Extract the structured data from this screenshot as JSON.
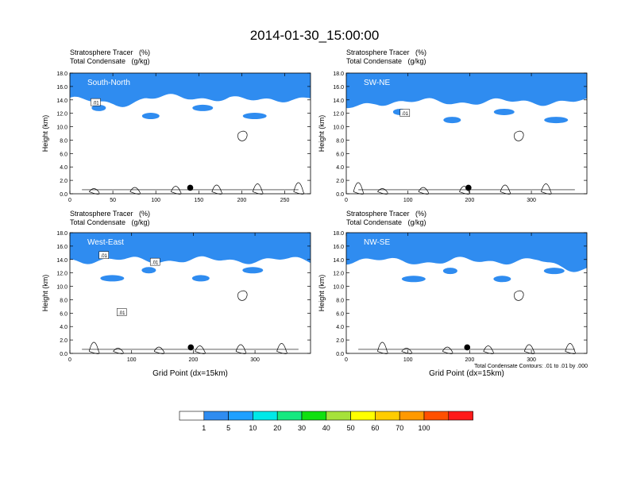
{
  "title": "2014-01-30_15:00:00",
  "colors": {
    "levels": [
      "#ffffff",
      "#2f8cf0",
      "#1fa0ff",
      "#00e8e8",
      "#16e880",
      "#10e010",
      "#a6e23a",
      "#ffff00",
      "#ffcc00",
      "#ff9900",
      "#ff5000",
      "#ff1a1a"
    ],
    "contour": "#000000",
    "marker": "#000000"
  },
  "colorbar": {
    "labels": [
      "1",
      "5",
      "10",
      "20",
      "30",
      "40",
      "50",
      "60",
      "70",
      "100"
    ]
  },
  "footnote": "Total Condensate Contours: .01 to .01 by .000",
  "chart_data": [
    {
      "type": "heatmap",
      "title_line1": "Stratosphere Tracer   (%)",
      "title_line2": "Total Condensate   (g/kg)",
      "label": "South-North",
      "ylabel": "Height (km)",
      "xlabel": "",
      "xlim": [
        0,
        280
      ],
      "ylim": [
        0,
        18
      ],
      "xticks": [
        0,
        50,
        100,
        150,
        200,
        250
      ],
      "yticks": [
        "0.0",
        "2.0",
        "4.0",
        "6.0",
        "8.0",
        "10.0",
        "12.0",
        "14.0",
        "16.0",
        "18.0"
      ],
      "contour_labels": [
        {
          "text": ".01",
          "x": 30,
          "y": 13.6
        }
      ],
      "marker_x": 140,
      "tracer_base_km": 15.2
    },
    {
      "type": "heatmap",
      "title_line1": "Stratosphere Tracer   (%)",
      "title_line2": "Total Condensate   (g/kg)",
      "label": "SW-NE",
      "ylabel": "Height (km)",
      "xlabel": "",
      "xlim": [
        0,
        390
      ],
      "ylim": [
        0,
        18
      ],
      "xticks": [
        0,
        100,
        200,
        300
      ],
      "yticks": [
        "0.0",
        "2.0",
        "4.0",
        "6.0",
        "8.0",
        "10.0",
        "12.0",
        "14.0",
        "16.0",
        "18.0"
      ],
      "contour_labels": [
        {
          "text": ".01",
          "x": 95,
          "y": 12.0
        }
      ],
      "marker_x": 198,
      "tracer_base_km": 14.6
    },
    {
      "type": "heatmap",
      "title_line1": "Stratosphere Tracer   (%)",
      "title_line2": "Total Condensate   (g/kg)",
      "label": "West-East",
      "ylabel": "Height (km)",
      "xlabel": "Grid Point (dx=15km)",
      "xlim": [
        0,
        390
      ],
      "ylim": [
        0,
        18
      ],
      "xticks": [
        0,
        100,
        200,
        300
      ],
      "yticks": [
        "0.0",
        "2.0",
        "4.0",
        "6.0",
        "8.0",
        "10.0",
        "12.0",
        "14.0",
        "16.0",
        "18.0"
      ],
      "contour_labels": [
        {
          "text": ".01",
          "x": 55,
          "y": 14.6
        },
        {
          "text": ".01",
          "x": 138,
          "y": 13.6
        },
        {
          "text": ".01",
          "x": 84,
          "y": 6.1
        }
      ],
      "marker_x": 196,
      "tracer_base_km": 14.8
    },
    {
      "type": "heatmap",
      "title_line1": "Stratosphere Tracer   (%)",
      "title_line2": "Total Condensate   (g/kg)",
      "label": "NW-SE",
      "ylabel": "Height (km)",
      "xlabel": "Grid Point (dx=15km)",
      "xlim": [
        0,
        390
      ],
      "ylim": [
        0,
        18
      ],
      "xticks": [
        0,
        100,
        200,
        300
      ],
      "yticks": [
        "0.0",
        "2.0",
        "4.0",
        "6.0",
        "8.0",
        "10.0",
        "12.0",
        "14.0",
        "16.0",
        "18.0"
      ],
      "contour_labels": [],
      "marker_x": 196,
      "tracer_base_km": 14.7
    }
  ]
}
